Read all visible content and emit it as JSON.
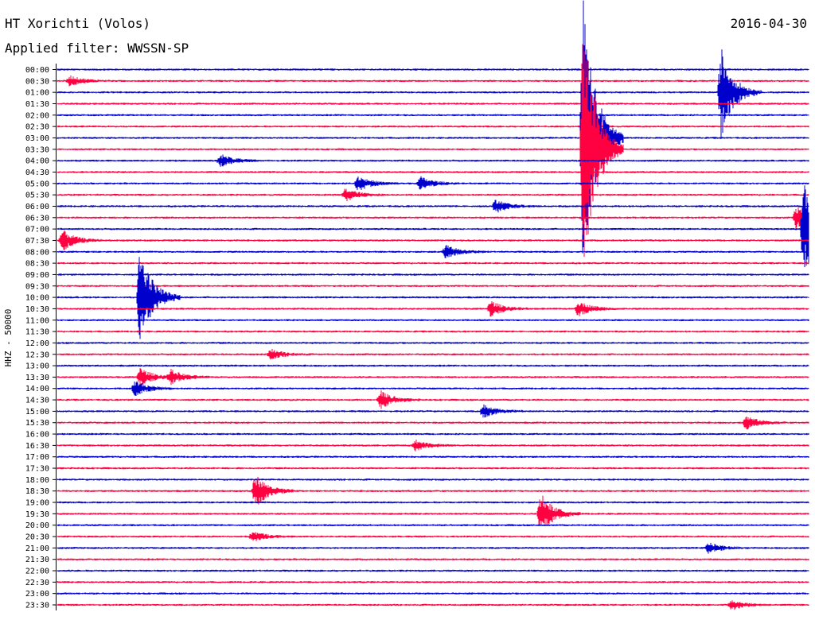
{
  "header": {
    "station": "HT Xorichti (Volos)",
    "date": "2016-04-30",
    "filter": "Applied filter: WWSSN-SP"
  },
  "chart_data": {
    "type": "helicorder",
    "channel_label": "HHZ - 50000",
    "trace_colors": [
      "#0000cc",
      "#ff0040"
    ],
    "row_labels": [
      "00:00",
      "00:30",
      "01:00",
      "01:30",
      "02:00",
      "02:30",
      "03:00",
      "03:30",
      "04:00",
      "04:30",
      "05:00",
      "05:30",
      "06:00",
      "06:30",
      "07:00",
      "07:30",
      "08:00",
      "08:30",
      "09:00",
      "09:30",
      "10:00",
      "10:30",
      "11:00",
      "11:30",
      "12:00",
      "12:30",
      "13:00",
      "13:30",
      "14:00",
      "14:30",
      "15:00",
      "15:30",
      "16:00",
      "16:30",
      "17:00",
      "17:30",
      "18:00",
      "18:30",
      "19:00",
      "19:30",
      "20:00",
      "20:30",
      "21:00",
      "21:30",
      "22:00",
      "22:30",
      "23:00",
      "23:30"
    ],
    "events": [
      {
        "row": "00:30",
        "minute": 0.5,
        "amplitude": 0.4
      },
      {
        "row": "01:00",
        "minute": 26.5,
        "amplitude": 3.5
      },
      {
        "row": "03:00",
        "minute": 21.0,
        "amplitude": 11.0
      },
      {
        "row": "03:30",
        "minute": 21.0,
        "amplitude": 11.0
      },
      {
        "row": "04:00",
        "minute": 6.5,
        "amplitude": 0.5
      },
      {
        "row": "05:00",
        "minute": 12.0,
        "amplitude": 0.6
      },
      {
        "row": "05:00",
        "minute": 14.5,
        "amplitude": 0.5
      },
      {
        "row": "05:30",
        "minute": 11.5,
        "amplitude": 0.5
      },
      {
        "row": "06:00",
        "minute": 17.5,
        "amplitude": 0.5
      },
      {
        "row": "06:30",
        "minute": 29.5,
        "amplitude": 1.0
      },
      {
        "row": "07:00",
        "minute": 29.8,
        "amplitude": 4.0
      },
      {
        "row": "07:30",
        "minute": 0.2,
        "amplitude": 0.8
      },
      {
        "row": "08:00",
        "minute": 15.5,
        "amplitude": 0.5
      },
      {
        "row": "10:00",
        "minute": 3.3,
        "amplitude": 4.0
      },
      {
        "row": "10:30",
        "minute": 17.3,
        "amplitude": 0.6
      },
      {
        "row": "10:30",
        "minute": 20.8,
        "amplitude": 0.6
      },
      {
        "row": "12:30",
        "minute": 8.5,
        "amplitude": 0.4
      },
      {
        "row": "13:30",
        "minute": 3.3,
        "amplitude": 0.7
      },
      {
        "row": "13:30",
        "minute": 4.5,
        "amplitude": 0.6
      },
      {
        "row": "14:00",
        "minute": 3.1,
        "amplitude": 0.6
      },
      {
        "row": "14:30",
        "minute": 12.9,
        "amplitude": 0.7
      },
      {
        "row": "15:00",
        "minute": 17.0,
        "amplitude": 0.5
      },
      {
        "row": "15:30",
        "minute": 27.5,
        "amplitude": 0.5
      },
      {
        "row": "16:30",
        "minute": 14.3,
        "amplitude": 0.4
      },
      {
        "row": "18:30",
        "minute": 7.9,
        "amplitude": 1.3
      },
      {
        "row": "19:30",
        "minute": 19.3,
        "amplitude": 1.6
      },
      {
        "row": "20:30",
        "minute": 7.8,
        "amplitude": 0.4
      },
      {
        "row": "21:00",
        "minute": 26.0,
        "amplitude": 0.4
      },
      {
        "row": "23:30",
        "minute": 26.9,
        "amplitude": 0.4
      }
    ]
  }
}
